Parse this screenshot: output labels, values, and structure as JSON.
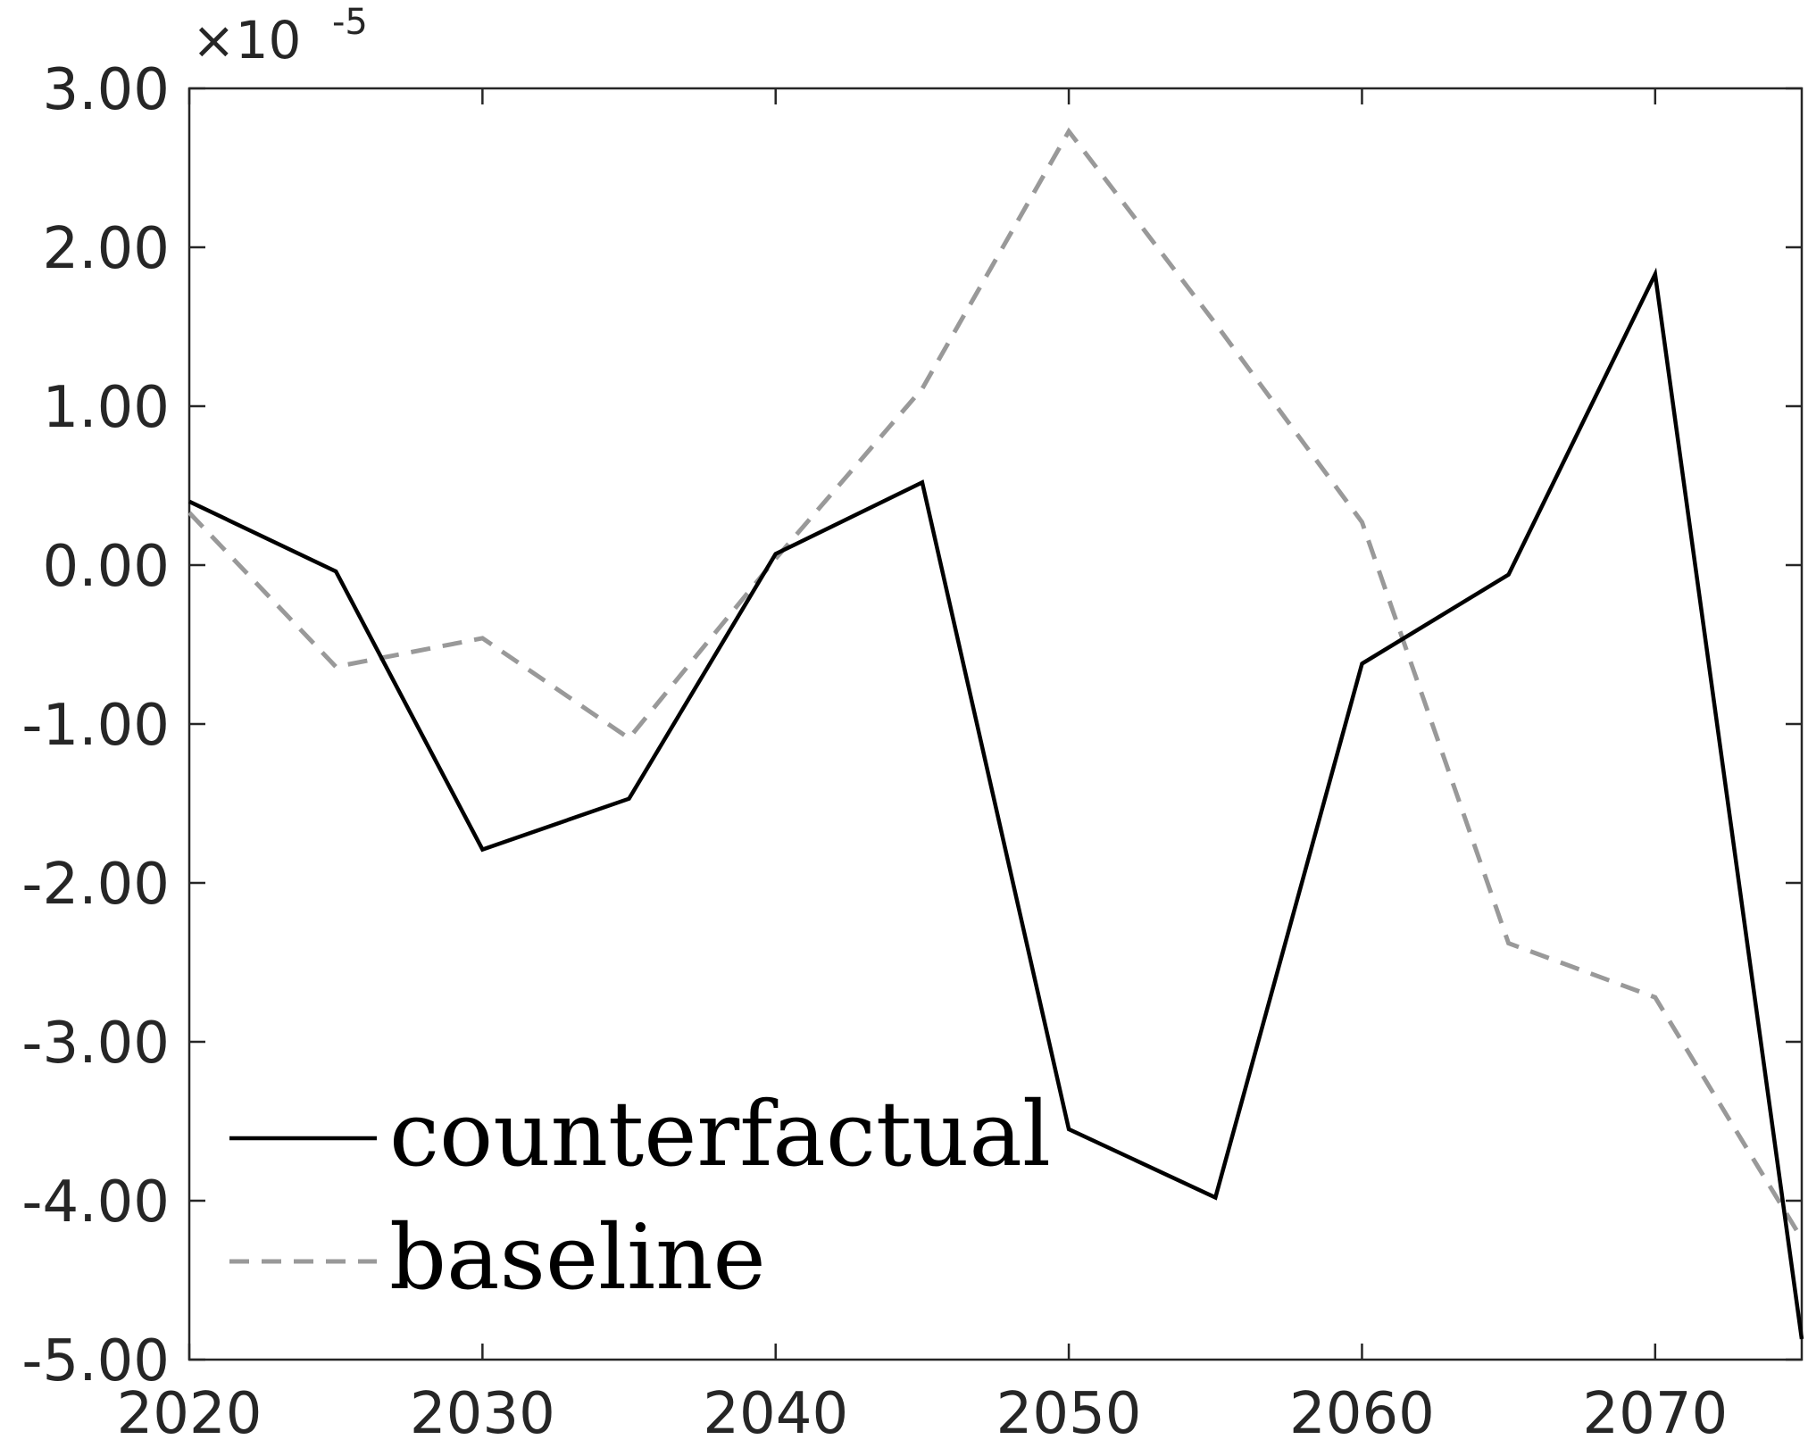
{
  "chart_data": {
    "type": "line",
    "title": "",
    "xlabel": "",
    "ylabel": "",
    "xlim": [
      2020,
      2075
    ],
    "ylim": [
      -5,
      3
    ],
    "y_scale_label": "×10",
    "y_scale_exponent": "-5",
    "x_ticks": [
      2020,
      2030,
      2040,
      2050,
      2060,
      2070
    ],
    "x_tick_labels": [
      "2020",
      "2030",
      "2040",
      "2050",
      "2060",
      "2070"
    ],
    "y_ticks": [
      3,
      2,
      1,
      0,
      -1,
      -2,
      -3,
      -4,
      -5
    ],
    "y_tick_labels": [
      "3.00",
      "2.00",
      "1.00",
      "0.00",
      "-1.00",
      "-2.00",
      "-3.00",
      "-4.00",
      "-5.00"
    ],
    "x": [
      2020,
      2025,
      2030,
      2035,
      2040,
      2045,
      2050,
      2055,
      2060,
      2065,
      2070,
      2075
    ],
    "series": [
      {
        "name": "counterfactual",
        "color": "#000000",
        "style": "solid",
        "values": [
          0.4,
          -0.04,
          -1.79,
          -1.47,
          0.07,
          0.52,
          -3.55,
          -3.98,
          -0.62,
          -0.06,
          1.83,
          -4.87
        ]
      },
      {
        "name": "baseline",
        "color": "#999999",
        "style": "dashed",
        "values": [
          0.33,
          -0.64,
          -0.46,
          -1.09,
          0.04,
          1.11,
          2.73,
          1.52,
          0.27,
          -2.38,
          -2.72,
          -4.24
        ]
      }
    ],
    "grid": false,
    "legend_position": "bottom-left",
    "legend": [
      "counterfactual",
      "baseline"
    ]
  }
}
